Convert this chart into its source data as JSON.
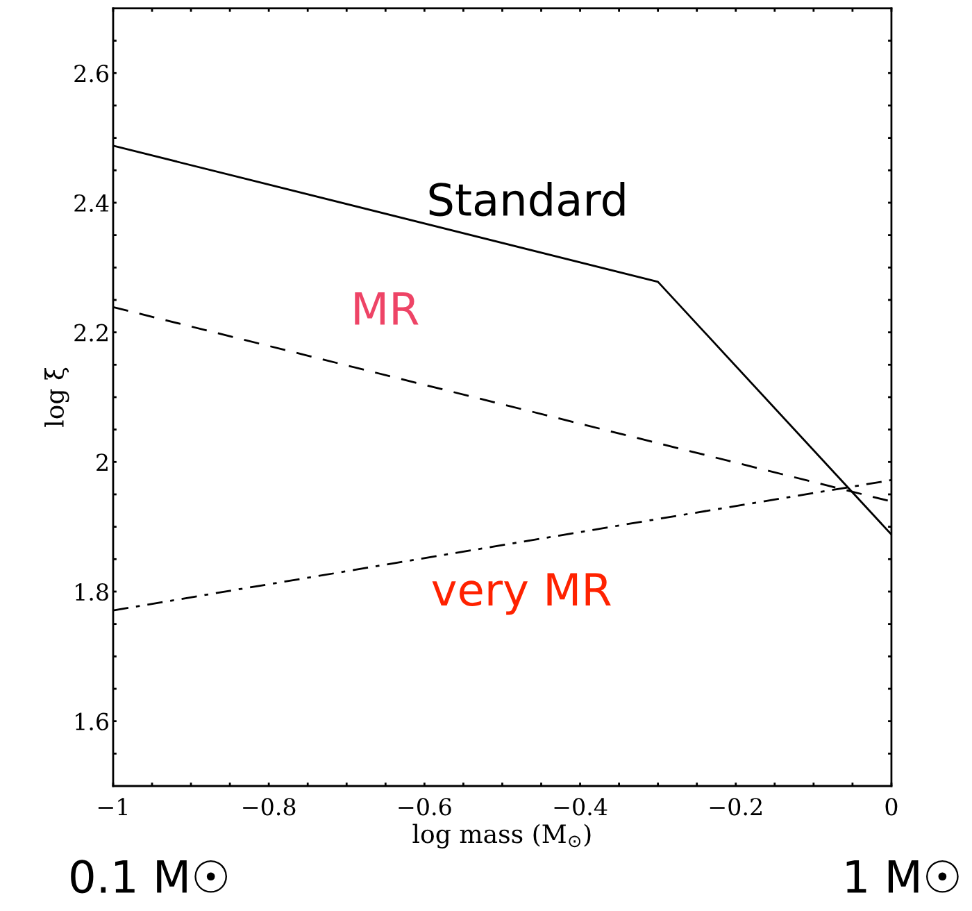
{
  "chart_data": {
    "type": "line",
    "xlabel": "log mass (M$_{⊙}$)",
    "ylabel": "log ξ",
    "x": [
      -1,
      -0.3,
      0
    ],
    "series": [
      {
        "name": "Standard",
        "color": "#000000",
        "line_style": "solid",
        "values": [
          2.488,
          2.278,
          1.888
        ]
      },
      {
        "name": "MR",
        "color": "#000000",
        "line_style": "dashed",
        "values": [
          2.239,
          2.029,
          1.939
        ]
      },
      {
        "name": "very MR",
        "color": "#000000",
        "line_style": "dashdot",
        "values": [
          1.771,
          1.912,
          1.972
        ]
      }
    ],
    "xlim": [
      -1,
      0
    ],
    "xticks": [
      {
        "value": -1,
        "label": "−1"
      },
      {
        "value": -0.95,
        "label": null
      },
      {
        "value": -0.9,
        "label": null
      },
      {
        "value": -0.85,
        "label": null
      },
      {
        "value": -0.8,
        "label": "−0.8"
      },
      {
        "value": -0.75,
        "label": null
      },
      {
        "value": -0.7,
        "label": null
      },
      {
        "value": -0.65,
        "label": null
      },
      {
        "value": -0.6,
        "label": "−0.6"
      },
      {
        "value": -0.55,
        "label": null
      },
      {
        "value": -0.5,
        "label": null
      },
      {
        "value": -0.45,
        "label": null
      },
      {
        "value": -0.4,
        "label": "−0.4"
      },
      {
        "value": -0.35,
        "label": null
      },
      {
        "value": -0.3,
        "label": null
      },
      {
        "value": -0.25,
        "label": null
      },
      {
        "value": -0.2,
        "label": "−0.2"
      },
      {
        "value": -0.15,
        "label": null
      },
      {
        "value": -0.1,
        "label": null
      },
      {
        "value": -0.05,
        "label": null
      },
      0
    ],
    "ylim": [
      1.5,
      2.7
    ],
    "yticks": [
      {
        "value": 1.55,
        "label": null
      },
      1.6,
      {
        "value": 1.65,
        "label": null
      },
      {
        "value": 1.7,
        "label": null
      },
      {
        "value": 1.75,
        "label": null
      },
      1.8,
      {
        "value": 1.85,
        "label": null
      },
      {
        "value": 1.9,
        "label": null
      },
      {
        "value": 1.95,
        "label": null
      },
      2,
      {
        "value": 2.05,
        "label": null
      },
      {
        "value": 2.1,
        "label": null
      },
      {
        "value": 2.15,
        "label": null
      },
      2.2,
      {
        "value": 2.25,
        "label": null
      },
      {
        "value": 2.3,
        "label": null
      },
      {
        "value": 2.35,
        "label": null
      },
      2.4,
      {
        "value": 2.45,
        "label": null
      },
      {
        "value": 2.5,
        "label": null
      },
      {
        "value": 2.55,
        "label": null
      },
      2.6,
      {
        "value": 2.65,
        "label": null
      }
    ],
    "grid": false,
    "legend": false,
    "marker": "none",
    "annotations": [
      "0.1 M☉",
      "1 M☉"
    ]
  }
}
